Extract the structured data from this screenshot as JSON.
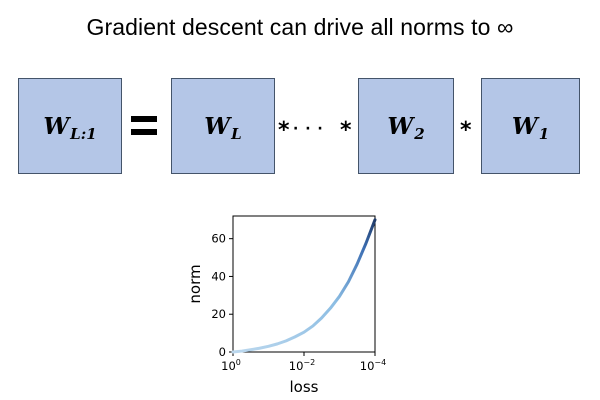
{
  "title": "Gradient descent can drive all norms to ∞",
  "equation": {
    "lhs": {
      "main": "W",
      "sub": "L:1"
    },
    "equals": "=",
    "terms": [
      {
        "main": "W",
        "sub": "L"
      },
      {
        "main": "W",
        "sub": "2"
      },
      {
        "main": "W",
        "sub": "1"
      }
    ],
    "separators": [
      "*",
      "· · ·",
      "*",
      "*"
    ]
  },
  "colors": {
    "box_fill": "#b4c6e7",
    "box_border": "#44546a",
    "curve_light": "#9ec8e8",
    "curve_dark": "#1f3a68"
  },
  "chart_data": {
    "type": "line",
    "xlabel": "loss",
    "ylabel": "norm",
    "x_scale": "log-reversed",
    "xlim": [
      1,
      0.0001
    ],
    "ylim": [
      0,
      72
    ],
    "xticks": [
      {
        "value": 1,
        "base": "10",
        "exp": "0"
      },
      {
        "value": 0.01,
        "base": "10",
        "exp": "−2"
      },
      {
        "value": 0.0001,
        "base": "10",
        "exp": "−4"
      }
    ],
    "yticks": [
      0,
      20,
      40,
      60
    ],
    "grid": false,
    "series": [
      {
        "x": [
          1,
          0.56,
          0.32,
          0.18,
          0.1,
          0.056,
          0.032,
          0.018,
          0.01,
          0.0056,
          0.0032,
          0.0018,
          0.001,
          0.00056,
          0.00032,
          0.00018,
          0.0001
        ],
        "y": [
          0,
          0.5,
          1.2,
          2.0,
          3.0,
          4.3,
          5.9,
          8.0,
          10.5,
          13.8,
          18.0,
          23.2,
          29.5,
          37.2,
          46.5,
          57.5,
          70.0
        ]
      }
    ]
  }
}
